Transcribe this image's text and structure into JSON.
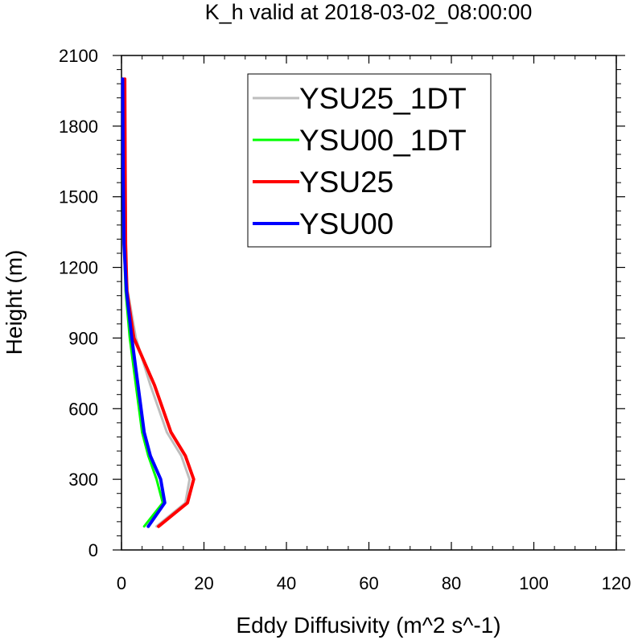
{
  "chart_data": {
    "type": "line",
    "title": "K_h valid at 2018-03-02_08:00:00",
    "xlabel": "Eddy Diffusivity (m^2 s^-1)",
    "ylabel": "Height (m)",
    "xlim": [
      0,
      120
    ],
    "ylim": [
      0,
      2100
    ],
    "xticks": [
      0,
      20,
      40,
      60,
      80,
      100,
      120
    ],
    "xtick_labels": [
      "0",
      "20",
      "40",
      "60",
      "80",
      "100",
      "120"
    ],
    "yticks": [
      0,
      300,
      600,
      900,
      1200,
      1500,
      1800,
      2100
    ],
    "ytick_labels": [
      "0",
      "300",
      "600",
      "900",
      "1200",
      "1500",
      "1800",
      "2100"
    ],
    "grid": false,
    "legend_position": "top-right",
    "series": [
      {
        "name": "YSU25_1DT",
        "color": "#bebebe",
        "x": [
          8.5,
          15.5,
          16.5,
          14.5,
          11,
          7,
          3.5,
          1.5,
          0.8,
          0.7,
          0.6
        ],
        "y": [
          100,
          200,
          300,
          400,
          500,
          700,
          900,
          1100,
          1300,
          1600,
          2000
        ]
      },
      {
        "name": "YSU00_1DT",
        "color": "#00ff00",
        "x": [
          5.5,
          10,
          8.5,
          6.5,
          5,
          3.5,
          2,
          1,
          0.6,
          0.5,
          0.4
        ],
        "y": [
          100,
          200,
          300,
          400,
          500,
          700,
          900,
          1100,
          1300,
          1600,
          2000
        ]
      },
      {
        "name": "YSU25",
        "color": "#ff0000",
        "x": [
          9,
          16,
          17.5,
          15.5,
          12,
          8,
          3,
          1.3,
          1,
          0.9,
          0.8
        ],
        "y": [
          100,
          200,
          300,
          400,
          500,
          700,
          900,
          1100,
          1300,
          1600,
          2000
        ]
      },
      {
        "name": "YSU00",
        "color": "#0000ff",
        "x": [
          6.5,
          10.5,
          9.5,
          7,
          5.5,
          4,
          2.5,
          1.2,
          0.6,
          0.4,
          0.3
        ],
        "y": [
          100,
          200,
          300,
          400,
          500,
          700,
          900,
          1100,
          1300,
          1600,
          2000
        ]
      }
    ]
  }
}
